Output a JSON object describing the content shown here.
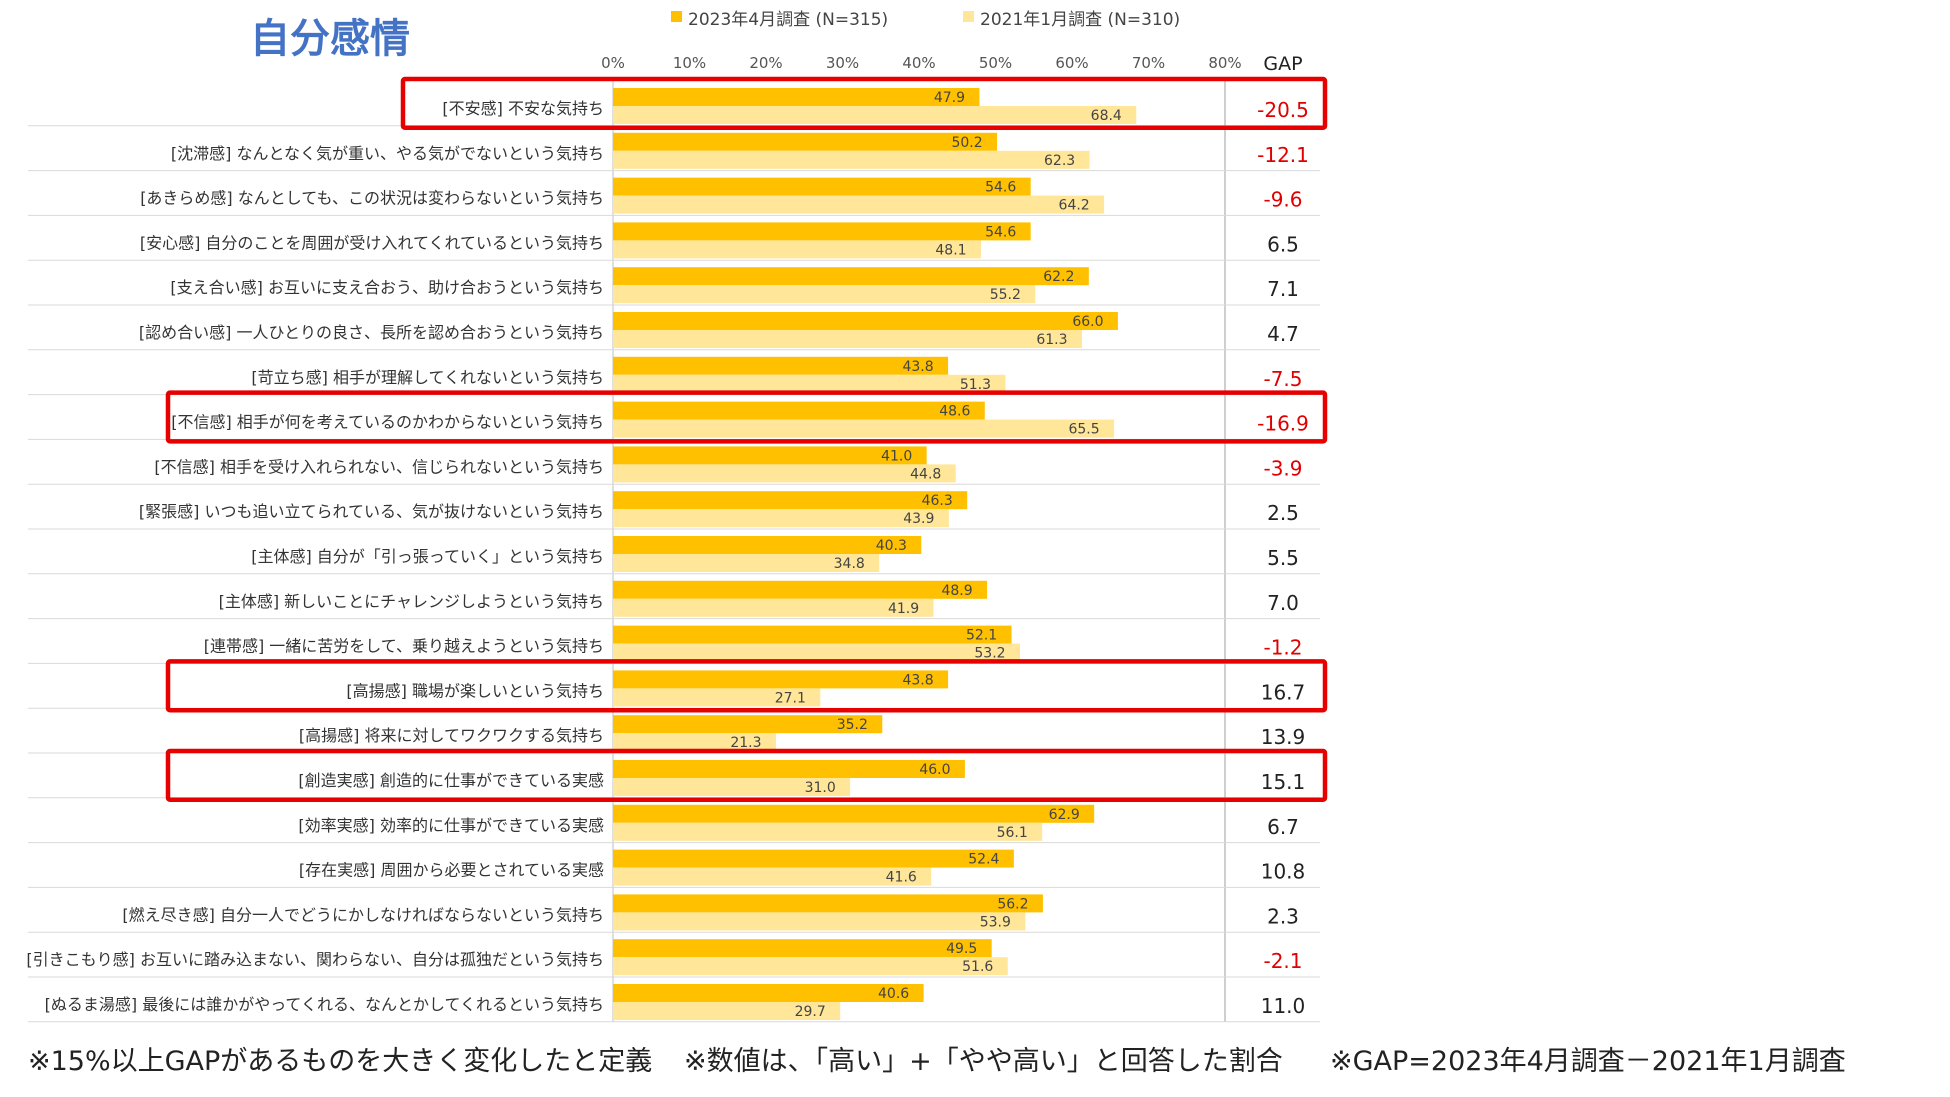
{
  "colors": {
    "series_2023": "#FFC000",
    "series_2021": "#FFE699",
    "title": "#4472C4",
    "negative_gap": "#E00000",
    "positive_gap": "#222222",
    "highlight_box": "#E60000"
  },
  "chart_data": {
    "type": "bar",
    "orientation": "horizontal",
    "title": "自分感情",
    "legend_position": "top",
    "xlim": [
      0,
      80
    ],
    "x_ticks": [
      "0%",
      "10%",
      "20%",
      "30%",
      "40%",
      "50%",
      "60%",
      "70%",
      "80%"
    ],
    "gap_header": "GAP",
    "categories": [
      "[不安感] 不安な気持ち",
      "[沈滞感] なんとなく気が重い、やる気がでないという気持ち",
      "[あきらめ感] なんとしても、この状況は変わらないという気持ち",
      "[安心感] 自分のことを周囲が受け入れてくれているという気持ち",
      "[支え合い感] お互いに支え合おう、助け合おうという気持ち",
      "[認め合い感] 一人ひとりの良さ、長所を認め合おうという気持ち",
      "[苛立ち感] 相手が理解してくれないという気持ち",
      "[不信感] 相手が何を考えているのかわからないという気持ち",
      "[不信感] 相手を受け入れられない、信じられないという気持ち",
      "[緊張感] いつも追い立てられている、気が抜けないという気持ち",
      "[主体感] 自分が「引っ張っていく」という気持ち",
      "[主体感] 新しいことにチャレンジしようという気持ち",
      "[連帯感] 一緒に苦労をして、乗り越えようという気持ち",
      "[高揚感] 職場が楽しいという気持ち",
      "[高揚感] 将来に対してワクワクする気持ち",
      "[創造実感] 創造的に仕事ができている実感",
      "[効率実感] 効率的に仕事ができている実感",
      "[存在実感] 周囲から必要とされている実感",
      "[燃え尽き感] 自分一人でどうにかしなければならないという気持ち",
      "[引きこもり感] お互いに踏み込まない、関わらない、自分は孤独だという気持ち",
      "[ぬるま湯感] 最後には誰かがやってくれる、なんとかしてくれるという気持ち"
    ],
    "series": [
      {
        "name": "2023年4月調査 (N=315)",
        "values": [
          47.9,
          50.2,
          54.6,
          54.6,
          62.2,
          66.0,
          43.8,
          48.6,
          41.0,
          46.3,
          40.3,
          48.9,
          52.1,
          43.8,
          35.2,
          46.0,
          62.9,
          52.4,
          56.2,
          49.5,
          40.6
        ],
        "labels": [
          "47.9",
          "50.2",
          "54.6",
          "54.6",
          "62.2",
          "66.0",
          "43.8",
          "48.6",
          "41.0",
          "46.3",
          "40.3",
          "48.9",
          "52.1",
          "43.8",
          "35.2",
          "46.0",
          "62.9",
          "52.4",
          "56.2",
          "49.5",
          "40.6"
        ]
      },
      {
        "name": "2021年1月調査 (N=310)",
        "values": [
          68.4,
          62.3,
          64.2,
          48.1,
          55.2,
          61.3,
          51.3,
          65.5,
          44.8,
          43.9,
          34.8,
          41.9,
          53.2,
          27.1,
          21.3,
          31.0,
          56.1,
          41.6,
          53.9,
          51.6,
          29.7
        ],
        "labels": [
          "68.4",
          "62.3",
          "64.2",
          "48.1",
          "55.2",
          "61.3",
          "51.3",
          "65.5",
          "44.8",
          "43.9",
          "34.8",
          "41.9",
          "53.2",
          "27.1",
          "21.3",
          "31.0",
          "56.1",
          "41.6",
          "53.9",
          "51.6",
          "29.7"
        ]
      }
    ],
    "gap_values": [
      -20.5,
      -12.1,
      -9.6,
      6.5,
      7.1,
      4.7,
      -7.5,
      -16.9,
      -3.9,
      2.5,
      5.5,
      7.0,
      -1.2,
      16.7,
      13.9,
      15.1,
      6.7,
      10.8,
      2.3,
      -2.1,
      11.0
    ],
    "gap_labels": [
      "-20.5",
      "-12.1",
      "-9.6",
      "6.5",
      "7.1",
      "4.7",
      "-7.5",
      "-16.9",
      "-3.9",
      "2.5",
      "5.5",
      "7.0",
      "-1.2",
      "16.7",
      "13.9",
      "15.1",
      "6.7",
      "10.8",
      "2.3",
      "-2.1",
      "11.0"
    ],
    "highlighted_rows": [
      0,
      7,
      13,
      15
    ],
    "footnotes": [
      "※15%以上GAPがあるものを大きく変化したと定義",
      "※数値は、「高い」+「やや高い」と回答した割合",
      "※GAP=2023年4月調査－2021年1月調査"
    ]
  }
}
